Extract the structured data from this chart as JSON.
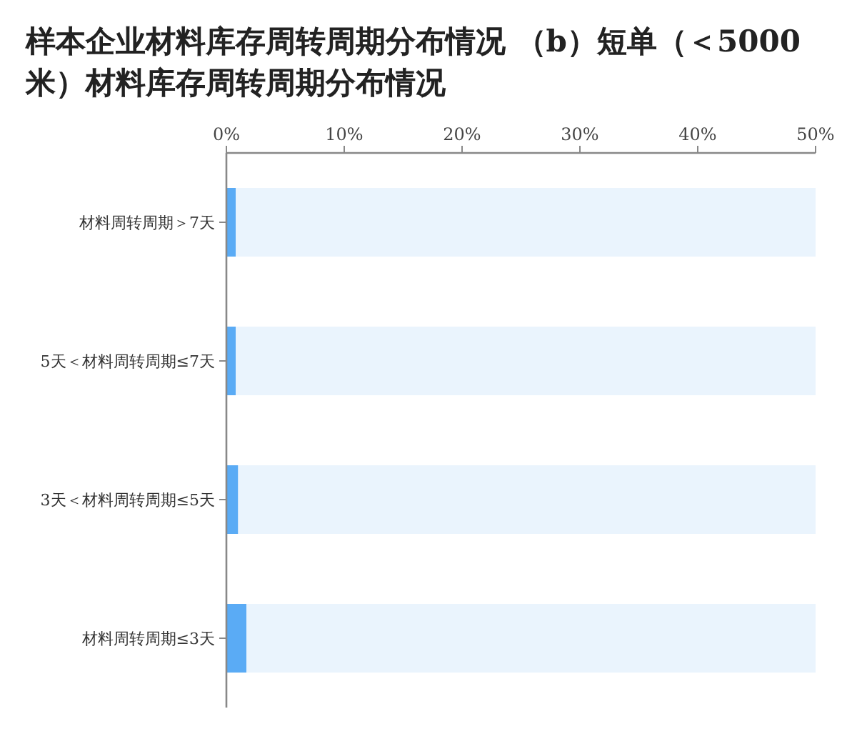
{
  "chart_data": {
    "type": "bar",
    "orientation": "horizontal",
    "stacked": true,
    "title": "样本企业材料库存周转周期分布情况 （b）短单（＜5000米）材料库存周转周期分布情况",
    "categories": [
      "材料周转周期＞7天",
      "5天＜材料周转周期≤7天",
      "3天＜材料周转周期≤5天",
      "材料周转周期≤3天"
    ],
    "series": [
      {
        "color": "#5aabf5",
        "values": [
          0.8,
          0.8,
          1.0,
          1.7
        ]
      },
      {
        "color": "#eaf4fd",
        "values": [
          49.2,
          49.2,
          49.0,
          48.3
        ]
      }
    ],
    "xlim": [
      0,
      50
    ],
    "xticks": [
      {
        "value": 0,
        "label": "0%"
      },
      {
        "value": 10,
        "label": "10%"
      },
      {
        "value": 20,
        "label": "20%"
      },
      {
        "value": 30,
        "label": "30%"
      },
      {
        "value": 40,
        "label": "40%"
      },
      {
        "value": 50,
        "label": "50%"
      }
    ],
    "grid": false
  }
}
